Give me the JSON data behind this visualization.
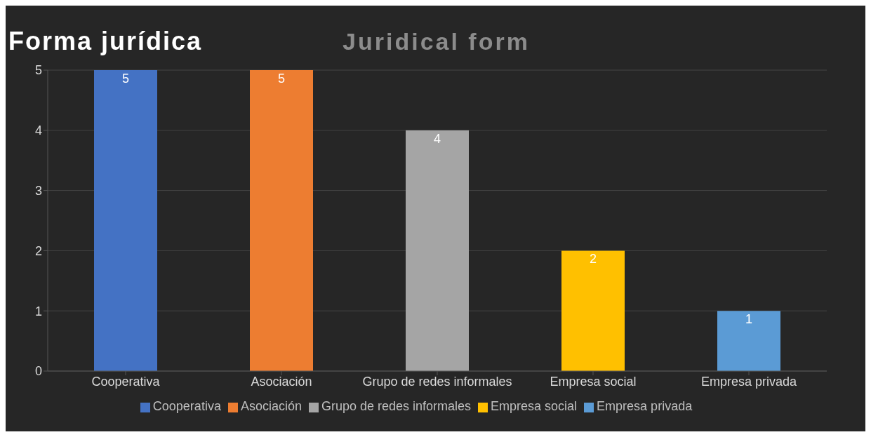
{
  "chart_data": {
    "type": "bar",
    "title": "Forma jurídica",
    "subtitle": "Juridical form",
    "categories": [
      "Cooperativa",
      "Asociación",
      "Grupo de redes informales",
      "Empresa social",
      "Empresa privada"
    ],
    "series": [
      {
        "name": "Cooperativa",
        "color": "#4472c4",
        "values": [
          5,
          null,
          null,
          null,
          null
        ]
      },
      {
        "name": "Asociación",
        "color": "#ed7d31",
        "values": [
          null,
          5,
          null,
          null,
          null
        ]
      },
      {
        "name": "Grupo de redes informales",
        "color": "#a5a5a5",
        "values": [
          null,
          null,
          4,
          null,
          null
        ]
      },
      {
        "name": "Empresa social",
        "color": "#ffc000",
        "values": [
          null,
          null,
          null,
          2,
          null
        ]
      },
      {
        "name": "Empresa privada",
        "color": "#5b9bd5",
        "values": [
          null,
          null,
          null,
          null,
          1
        ]
      }
    ],
    "ylim": [
      0,
      5
    ],
    "yticks": [
      0,
      1,
      2,
      3,
      4,
      5
    ],
    "grid": "y",
    "legend": "bottom",
    "data_labels": true
  }
}
